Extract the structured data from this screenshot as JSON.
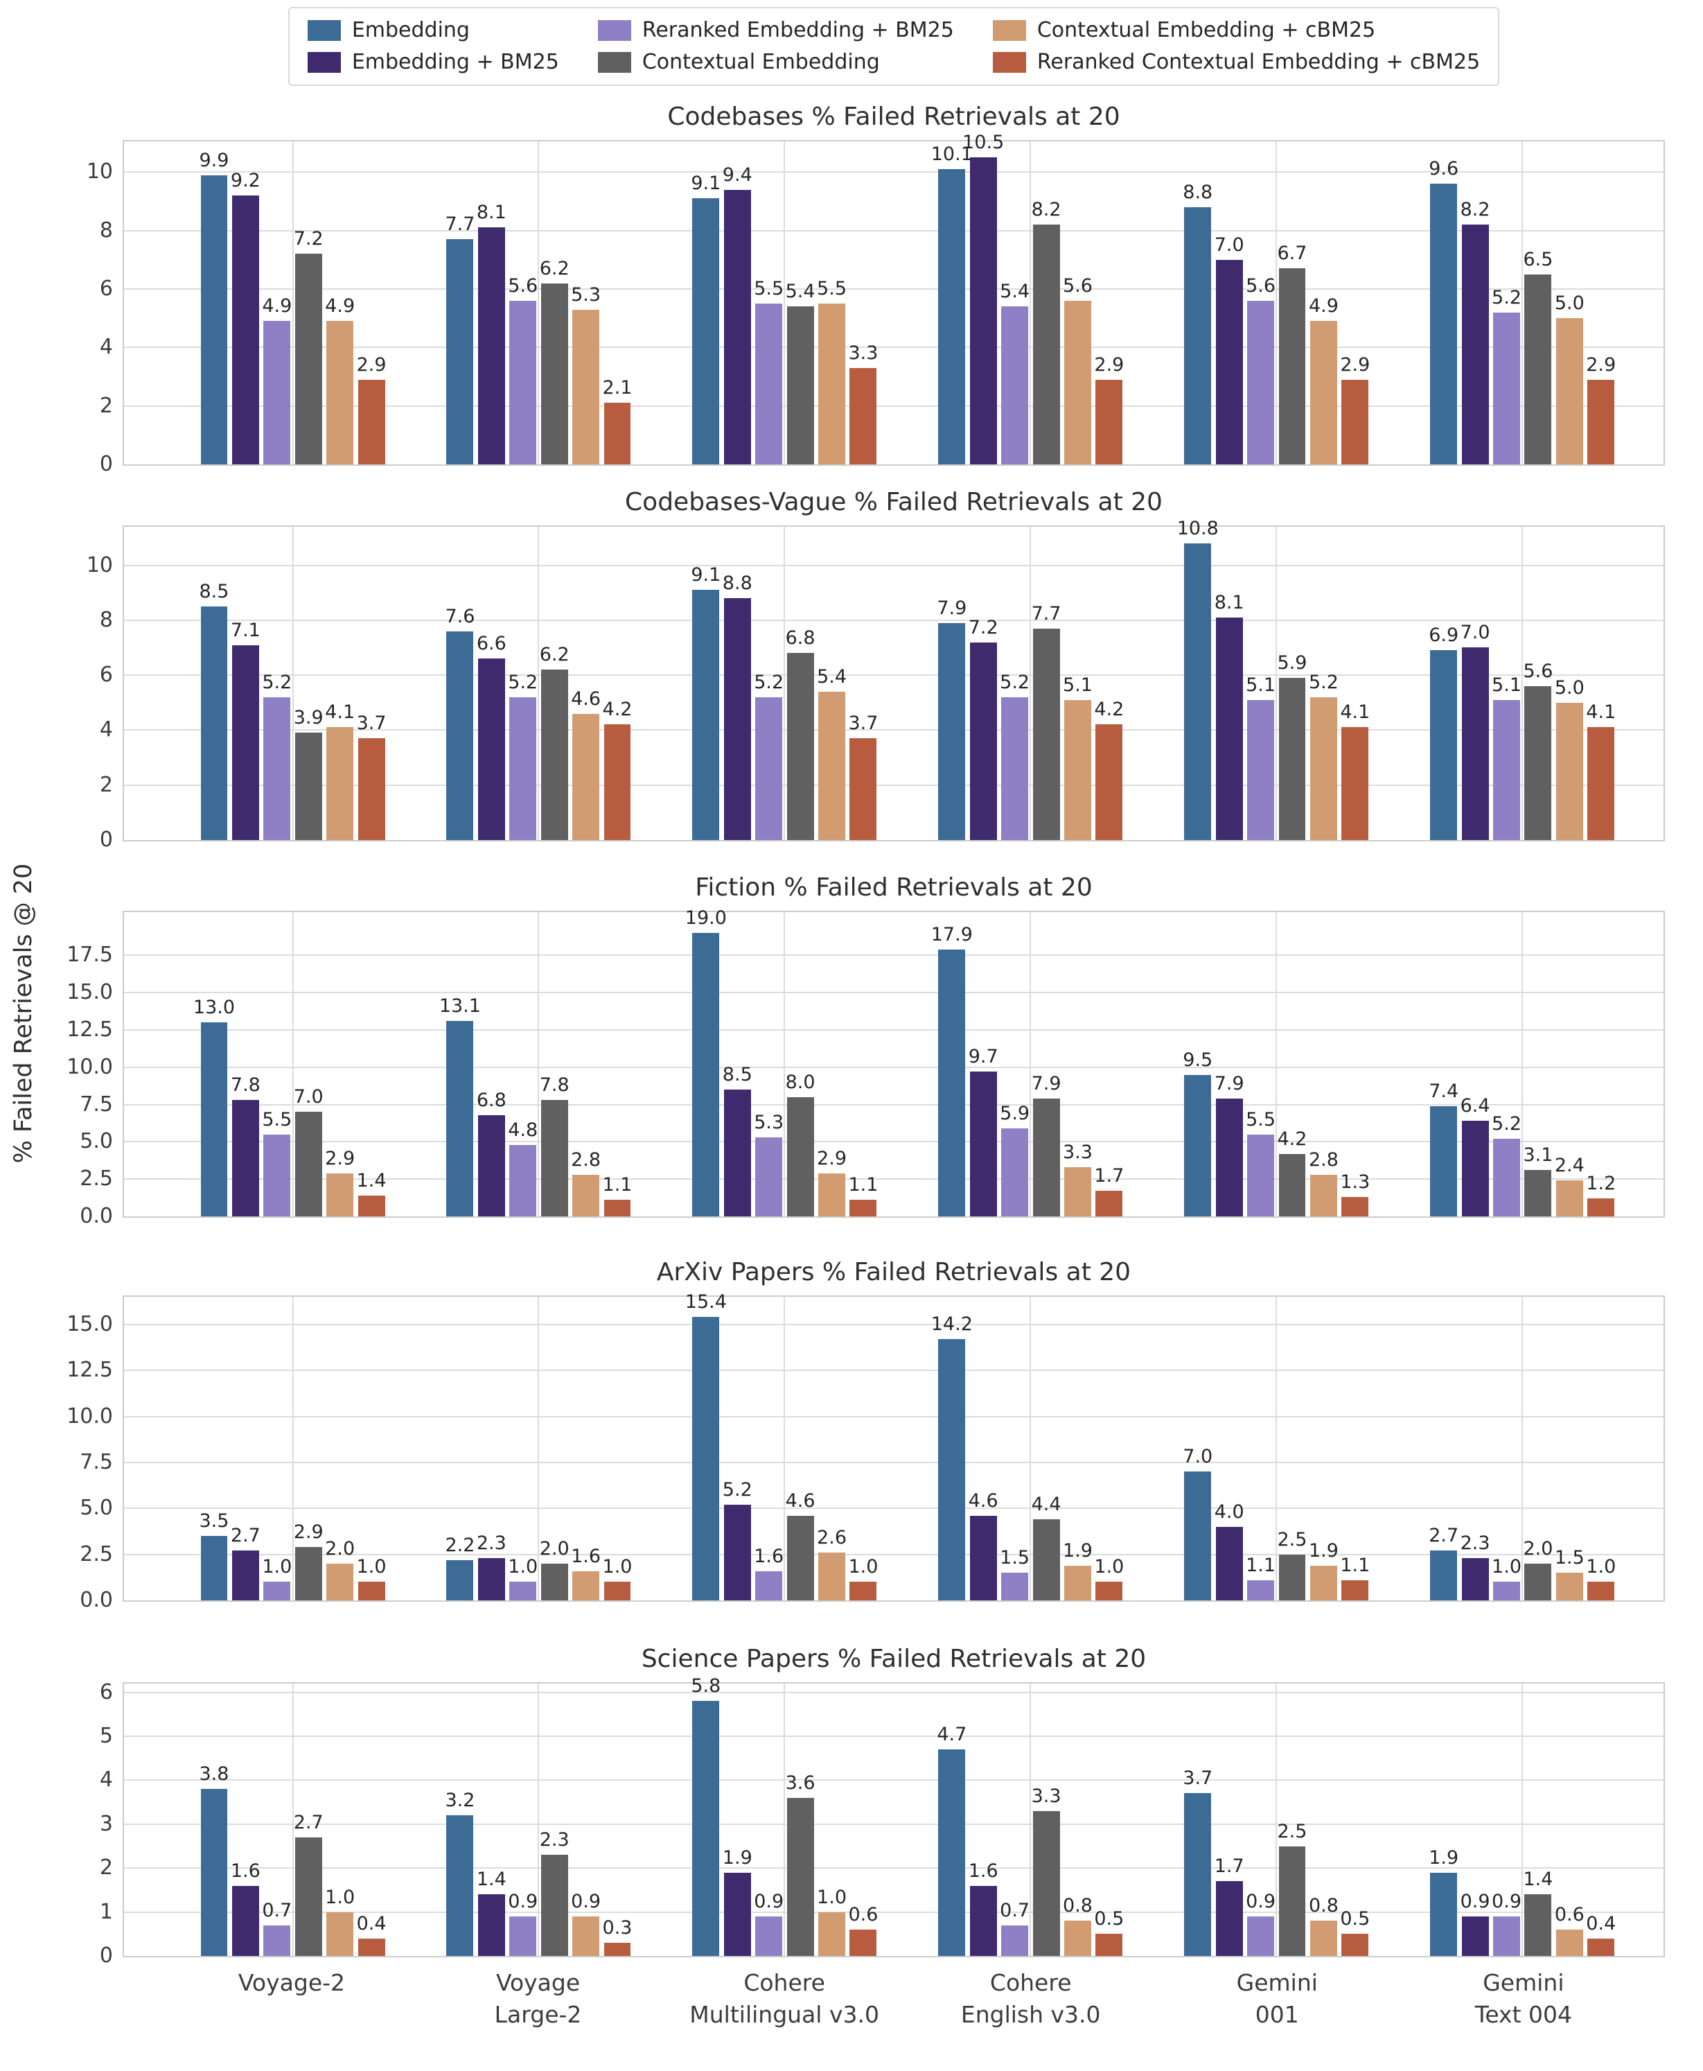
{
  "ylabel": "% Failed Retrievals @ 20",
  "legend": {
    "items": [
      {
        "label": "Embedding",
        "color": "#3c6b96"
      },
      {
        "label": "Embedding + BM25",
        "color": "#3f2a6e"
      },
      {
        "label": "Reranked Embedding + BM25",
        "color": "#8f80c5"
      },
      {
        "label": "Contextual Embedding",
        "color": "#606060"
      },
      {
        "label": "Contextual Embedding + cBM25",
        "color": "#d19c72"
      },
      {
        "label": "Reranked Contextual Embedding + cBM25",
        "color": "#b85c40"
      }
    ]
  },
  "category_labels": [
    [
      "Voyage-2"
    ],
    [
      "Voyage",
      "Large-2"
    ],
    [
      "Cohere",
      "Multilingual v3.0"
    ],
    [
      "Cohere",
      "English v3.0"
    ],
    [
      "Gemini",
      "001"
    ],
    [
      "Gemini",
      "Text 004"
    ]
  ],
  "chart_data": [
    {
      "type": "bar",
      "title": "Codebases % Failed Retrievals at 20",
      "categories": [
        "Voyage-2",
        "Voyage Large-2",
        "Cohere Multilingual v3.0",
        "Cohere English v3.0",
        "Gemini 001",
        "Gemini Text 004"
      ],
      "series": [
        {
          "name": "Embedding",
          "values": [
            9.9,
            7.7,
            9.1,
            10.1,
            8.8,
            9.6
          ]
        },
        {
          "name": "Embedding + BM25",
          "values": [
            9.2,
            8.1,
            9.4,
            10.5,
            7.0,
            8.2
          ]
        },
        {
          "name": "Reranked Embedding + BM25",
          "values": [
            4.9,
            5.6,
            5.5,
            5.4,
            5.6,
            5.2
          ]
        },
        {
          "name": "Contextual Embedding",
          "values": [
            7.2,
            6.2,
            5.4,
            8.2,
            6.7,
            6.5
          ]
        },
        {
          "name": "Contextual Embedding + cBM25",
          "values": [
            4.9,
            5.3,
            5.5,
            5.6,
            4.9,
            5.0
          ]
        },
        {
          "name": "Reranked Contextual Embedding + cBM25",
          "values": [
            2.9,
            2.1,
            3.3,
            2.9,
            2.9,
            2.9
          ]
        }
      ],
      "ytick_labels": [
        "0",
        "2",
        "4",
        "6",
        "8",
        "10"
      ],
      "ytick_values": [
        0,
        2,
        4,
        6,
        8,
        10
      ],
      "ylim": [
        0,
        11.05
      ],
      "grid": true,
      "legend_position": "top-center-shared"
    },
    {
      "type": "bar",
      "title": "Codebases-Vague % Failed Retrievals at 20",
      "categories": [
        "Voyage-2",
        "Voyage Large-2",
        "Cohere Multilingual v3.0",
        "Cohere English v3.0",
        "Gemini 001",
        "Gemini Text 004"
      ],
      "series": [
        {
          "name": "Embedding",
          "values": [
            8.5,
            7.6,
            9.1,
            7.9,
            10.8,
            6.9
          ]
        },
        {
          "name": "Embedding + BM25",
          "values": [
            7.1,
            6.6,
            8.8,
            7.2,
            8.1,
            7.0
          ]
        },
        {
          "name": "Reranked Embedding + BM25",
          "values": [
            5.2,
            5.2,
            5.2,
            5.2,
            5.1,
            5.1
          ]
        },
        {
          "name": "Contextual Embedding",
          "values": [
            3.9,
            6.2,
            6.8,
            7.7,
            5.9,
            5.6
          ]
        },
        {
          "name": "Contextual Embedding + cBM25",
          "values": [
            4.1,
            4.6,
            5.4,
            5.1,
            5.2,
            5.0
          ]
        },
        {
          "name": "Reranked Contextual Embedding + cBM25",
          "values": [
            3.7,
            4.2,
            3.7,
            4.2,
            4.1,
            4.1
          ]
        }
      ],
      "ytick_labels": [
        "0",
        "2",
        "4",
        "6",
        "8",
        "10"
      ],
      "ytick_values": [
        0,
        2,
        4,
        6,
        8,
        10
      ],
      "ylim": [
        0,
        11.4
      ],
      "grid": true
    },
    {
      "type": "bar",
      "title": "Fiction % Failed Retrievals at 20",
      "categories": [
        "Voyage-2",
        "Voyage Large-2",
        "Cohere Multilingual v3.0",
        "Cohere English v3.0",
        "Gemini 001",
        "Gemini Text 004"
      ],
      "series": [
        {
          "name": "Embedding",
          "values": [
            13.0,
            13.1,
            19.0,
            17.9,
            9.5,
            7.4
          ]
        },
        {
          "name": "Embedding + BM25",
          "values": [
            7.8,
            6.8,
            8.5,
            9.7,
            7.9,
            6.4
          ]
        },
        {
          "name": "Reranked Embedding + BM25",
          "values": [
            5.5,
            4.8,
            5.3,
            5.9,
            5.5,
            5.2
          ]
        },
        {
          "name": "Contextual Embedding",
          "values": [
            7.0,
            7.8,
            8.0,
            7.9,
            4.2,
            3.1
          ]
        },
        {
          "name": "Contextual Embedding + cBM25",
          "values": [
            2.9,
            2.8,
            2.9,
            3.3,
            2.8,
            2.4
          ]
        },
        {
          "name": "Reranked Contextual Embedding + cBM25",
          "values": [
            1.4,
            1.1,
            1.1,
            1.7,
            1.3,
            1.2
          ]
        }
      ],
      "ytick_labels": [
        "0.0",
        "2.5",
        "5.0",
        "7.5",
        "10.0",
        "12.5",
        "15.0",
        "17.5"
      ],
      "ytick_values": [
        0,
        2.5,
        5,
        7.5,
        10,
        12.5,
        15,
        17.5
      ],
      "ylim": [
        0,
        20.4
      ],
      "grid": true
    },
    {
      "type": "bar",
      "title": "ArXiv Papers % Failed Retrievals at 20",
      "categories": [
        "Voyage-2",
        "Voyage Large-2",
        "Cohere Multilingual v3.0",
        "Cohere English v3.0",
        "Gemini 001",
        "Gemini Text 004"
      ],
      "series": [
        {
          "name": "Embedding",
          "values": [
            3.5,
            2.2,
            15.4,
            14.2,
            7.0,
            2.7
          ]
        },
        {
          "name": "Embedding + BM25",
          "values": [
            2.7,
            2.3,
            5.2,
            4.6,
            4.0,
            2.3
          ]
        },
        {
          "name": "Reranked Embedding + BM25",
          "values": [
            1.0,
            1.0,
            1.6,
            1.5,
            1.1,
            1.0
          ]
        },
        {
          "name": "Contextual Embedding",
          "values": [
            2.9,
            2.0,
            4.6,
            4.4,
            2.5,
            2.0
          ]
        },
        {
          "name": "Contextual Embedding + cBM25",
          "values": [
            2.0,
            1.6,
            2.6,
            1.9,
            1.9,
            1.5
          ]
        },
        {
          "name": "Reranked Contextual Embedding + cBM25",
          "values": [
            1.0,
            1.0,
            1.0,
            1.0,
            1.1,
            1.0
          ]
        }
      ],
      "ytick_labels": [
        "0.0",
        "2.5",
        "5.0",
        "7.5",
        "10.0",
        "12.5",
        "15.0"
      ],
      "ytick_values": [
        0,
        2.5,
        5,
        7.5,
        10,
        12.5,
        15
      ],
      "ylim": [
        0,
        16.5
      ],
      "grid": true
    },
    {
      "type": "bar",
      "title": "Science Papers % Failed Retrievals at 20",
      "categories": [
        "Voyage-2",
        "Voyage Large-2",
        "Cohere Multilingual v3.0",
        "Cohere English v3.0",
        "Gemini 001",
        "Gemini Text 004"
      ],
      "series": [
        {
          "name": "Embedding",
          "values": [
            3.8,
            3.2,
            5.8,
            4.7,
            3.7,
            1.9
          ]
        },
        {
          "name": "Embedding + BM25",
          "values": [
            1.6,
            1.4,
            1.9,
            1.6,
            1.7,
            0.9
          ]
        },
        {
          "name": "Reranked Embedding + BM25",
          "values": [
            0.7,
            0.9,
            0.9,
            0.7,
            0.9,
            0.9
          ]
        },
        {
          "name": "Contextual Embedding",
          "values": [
            2.7,
            2.3,
            3.6,
            3.3,
            2.5,
            1.4
          ]
        },
        {
          "name": "Contextual Embedding + cBM25",
          "values": [
            1.0,
            0.9,
            1.0,
            0.8,
            0.8,
            0.6
          ]
        },
        {
          "name": "Reranked Contextual Embedding + cBM25",
          "values": [
            0.4,
            0.3,
            0.6,
            0.5,
            0.5,
            0.4
          ]
        }
      ],
      "ytick_labels": [
        "0",
        "1",
        "2",
        "3",
        "4",
        "5",
        "6"
      ],
      "ytick_values": [
        0,
        1,
        2,
        3,
        4,
        5,
        6
      ],
      "ylim": [
        0,
        6.2
      ],
      "grid": true
    }
  ]
}
